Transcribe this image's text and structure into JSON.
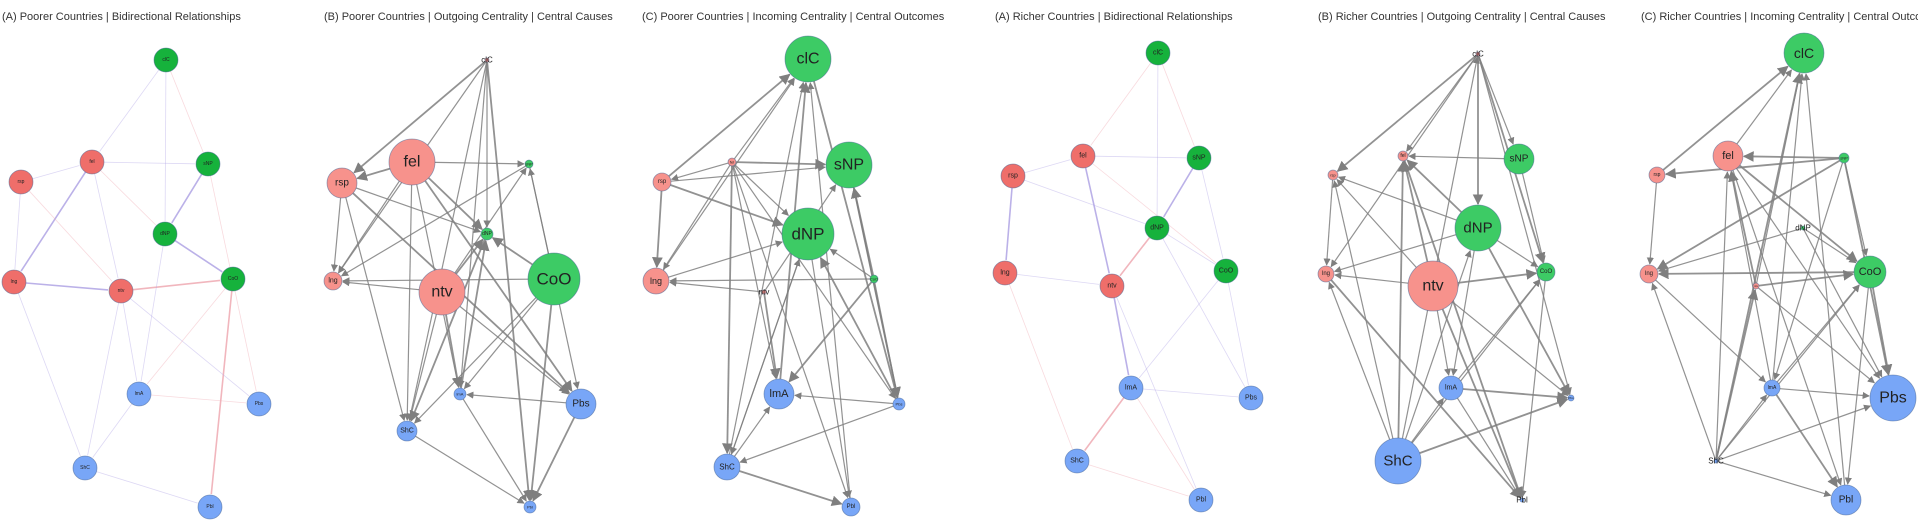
{
  "colors": {
    "red_dark": "#ef6e6a",
    "red_light": "#f7928c",
    "green_dark": "#16b23c",
    "green_light": "#3dcb65",
    "blue": "#78a6f7",
    "edge_gray": "#7f7f7f",
    "edge_lilac": "#b4a8e6",
    "edge_pink": "#f0aeb6"
  },
  "panels": [
    {
      "title": "(A) Poorer Countries | Bidirectional Relationships",
      "style": "undirected",
      "nodes": [
        {
          "id": "clC",
          "label": "clC"
        },
        {
          "id": "fel",
          "label": "fel"
        },
        {
          "id": "sNP",
          "label": "sNP"
        },
        {
          "id": "rsp",
          "label": "rsp"
        },
        {
          "id": "dNP",
          "label": "dNP"
        },
        {
          "id": "lng",
          "label": "lng"
        },
        {
          "id": "ntv",
          "label": "ntv"
        },
        {
          "id": "CoO",
          "label": "CoO"
        },
        {
          "id": "lmA",
          "label": "lmA"
        },
        {
          "id": "Pbs",
          "label": "Pbs"
        },
        {
          "id": "ShC",
          "label": "ShC"
        },
        {
          "id": "Pbl",
          "label": "Pbl"
        }
      ],
      "edges": [
        [
          "fel",
          "lng"
        ],
        [
          "lng",
          "ntv"
        ],
        [
          "ntv",
          "CoO"
        ],
        [
          "sNP",
          "dNP"
        ],
        [
          "dNP",
          "CoO"
        ],
        [
          "CoO",
          "Pbl"
        ],
        [
          "ntv",
          "lmA"
        ],
        [
          "rsp",
          "fel"
        ],
        [
          "rsp",
          "ntv"
        ],
        [
          "fel",
          "ntv"
        ],
        [
          "clC",
          "fel"
        ],
        [
          "clC",
          "sNP"
        ],
        [
          "clC",
          "dNP"
        ],
        [
          "fel",
          "sNP"
        ],
        [
          "fel",
          "dNP"
        ],
        [
          "rsp",
          "lng"
        ],
        [
          "lmA",
          "ShC"
        ],
        [
          "lmA",
          "Pbs"
        ],
        [
          "ShC",
          "Pbl"
        ],
        [
          "dNP",
          "lmA"
        ],
        [
          "sNP",
          "Pbs"
        ],
        [
          "ntv",
          "Pbs"
        ],
        [
          "lng",
          "ShC"
        ],
        [
          "CoO",
          "lmA"
        ],
        [
          "ntv",
          "ShC"
        ]
      ]
    },
    {
      "title": "(B) Poorer Countries | Outgoing Centrality | Central Causes",
      "style": "directed",
      "nodes": [
        {
          "id": "clC",
          "label": "clC"
        },
        {
          "id": "fel",
          "label": "fel"
        },
        {
          "id": "rsp",
          "label": "rsp"
        },
        {
          "id": "sNP",
          "label": "sNP"
        },
        {
          "id": "dNP",
          "label": "dNP"
        },
        {
          "id": "lng",
          "label": "lng"
        },
        {
          "id": "ntv",
          "label": "ntv"
        },
        {
          "id": "CoO",
          "label": "CoO"
        },
        {
          "id": "lmA",
          "label": "lmA"
        },
        {
          "id": "Pbs",
          "label": "Pbs"
        },
        {
          "id": "ShC",
          "label": "ShC"
        },
        {
          "id": "Pbl",
          "label": "Pbl"
        }
      ],
      "edges": [
        [
          "clC",
          "rsp"
        ],
        [
          "clC",
          "lng"
        ],
        [
          "clC",
          "lmA"
        ],
        [
          "clC",
          "Pbl"
        ],
        [
          "clC",
          "ShC"
        ],
        [
          "clC",
          "dNP"
        ],
        [
          "fel",
          "rsp"
        ],
        [
          "fel",
          "lng"
        ],
        [
          "fel",
          "sNP"
        ],
        [
          "fel",
          "dNP"
        ],
        [
          "fel",
          "lmA"
        ],
        [
          "fel",
          "ShC"
        ],
        [
          "fel",
          "Pbs"
        ],
        [
          "rsp",
          "lng"
        ],
        [
          "rsp",
          "ShC"
        ],
        [
          "rsp",
          "Pbs"
        ],
        [
          "rsp",
          "dNP"
        ],
        [
          "ntv",
          "lng"
        ],
        [
          "ntv",
          "dNP"
        ],
        [
          "ntv",
          "sNP"
        ],
        [
          "ntv",
          "ShC"
        ],
        [
          "ntv",
          "lmA"
        ],
        [
          "ntv",
          "Pbs"
        ],
        [
          "CoO",
          "sNP"
        ],
        [
          "CoO",
          "dNP"
        ],
        [
          "CoO",
          "lmA"
        ],
        [
          "CoO",
          "ShC"
        ],
        [
          "CoO",
          "Pbl"
        ],
        [
          "CoO",
          "lng"
        ],
        [
          "Pbs",
          "lmA"
        ],
        [
          "Pbs",
          "Pbl"
        ],
        [
          "ShC",
          "Pbl"
        ],
        [
          "lmA",
          "Pbl"
        ],
        [
          "dNP",
          "ShC"
        ],
        [
          "sNP",
          "Pbs"
        ],
        [
          "sNP",
          "lng"
        ],
        [
          "lmA",
          "dNP"
        ]
      ]
    },
    {
      "title": "(C) Poorer Countries | Incoming Centrality | Central Outcomes",
      "style": "directed",
      "nodes": [
        {
          "id": "clC",
          "label": "clC"
        },
        {
          "id": "fel",
          "label": "fel"
        },
        {
          "id": "rsp",
          "label": "rsp"
        },
        {
          "id": "sNP",
          "label": "sNP"
        },
        {
          "id": "dNP",
          "label": "dNP"
        },
        {
          "id": "lng",
          "label": "lng"
        },
        {
          "id": "ntv",
          "label": "ntv"
        },
        {
          "id": "CoO",
          "label": "CoO"
        },
        {
          "id": "lmA",
          "label": "lmA"
        },
        {
          "id": "Pbs",
          "label": "Pbs"
        },
        {
          "id": "ShC",
          "label": "ShC"
        },
        {
          "id": "Pbl",
          "label": "Pbl"
        }
      ],
      "edges": [
        [
          "rsp",
          "clC"
        ],
        [
          "fel",
          "clC"
        ],
        [
          "lng",
          "clC"
        ],
        [
          "lmA",
          "clC"
        ],
        [
          "Pbl",
          "clC"
        ],
        [
          "ShC",
          "clC"
        ],
        [
          "fel",
          "sNP"
        ],
        [
          "rsp",
          "sNP"
        ],
        [
          "ntv",
          "sNP"
        ],
        [
          "CoO",
          "sNP"
        ],
        [
          "Pbs",
          "sNP"
        ],
        [
          "fel",
          "dNP"
        ],
        [
          "rsp",
          "dNP"
        ],
        [
          "lng",
          "dNP"
        ],
        [
          "ShC",
          "dNP"
        ],
        [
          "Pbs",
          "dNP"
        ],
        [
          "CoO",
          "dNP"
        ],
        [
          "fel",
          "lmA"
        ],
        [
          "CoO",
          "lmA"
        ],
        [
          "ShC",
          "lmA"
        ],
        [
          "Pbs",
          "lmA"
        ],
        [
          "ntv",
          "lmA"
        ],
        [
          "fel",
          "rsp"
        ],
        [
          "fel",
          "lng"
        ],
        [
          "rsp",
          "lng"
        ],
        [
          "ntv",
          "lng"
        ],
        [
          "CoO",
          "lng"
        ],
        [
          "fel",
          "ShC"
        ],
        [
          "Pbs",
          "ShC"
        ],
        [
          "dNP",
          "ShC"
        ],
        [
          "ShC",
          "Pbl"
        ],
        [
          "dNP",
          "Pbl"
        ],
        [
          "fel",
          "Pbl"
        ],
        [
          "sNP",
          "Pbs"
        ],
        [
          "CoO",
          "Pbs"
        ],
        [
          "fel",
          "Pbs"
        ],
        [
          "clC",
          "Pbs"
        ]
      ]
    },
    {
      "title": "(A) Richer Countries | Bidirectional Relationships",
      "style": "undirected",
      "nodes": [
        {
          "id": "clC",
          "label": "clC"
        },
        {
          "id": "fel",
          "label": "fel"
        },
        {
          "id": "sNP",
          "label": "sNP"
        },
        {
          "id": "rsp",
          "label": "rsp"
        },
        {
          "id": "dNP",
          "label": "dNP"
        },
        {
          "id": "lng",
          "label": "lng"
        },
        {
          "id": "ntv",
          "label": "ntv"
        },
        {
          "id": "CoO",
          "label": "CoO"
        },
        {
          "id": "lmA",
          "label": "lmA"
        },
        {
          "id": "Pbs",
          "label": "Pbs"
        },
        {
          "id": "ShC",
          "label": "ShC"
        },
        {
          "id": "Pbl",
          "label": "Pbl"
        }
      ],
      "edges": [
        [
          "fel",
          "ntv"
        ],
        [
          "ntv",
          "lmA"
        ],
        [
          "lmA",
          "ShC"
        ],
        [
          "rsp",
          "lng"
        ],
        [
          "sNP",
          "dNP"
        ],
        [
          "dNP",
          "ntv"
        ],
        [
          "dNP",
          "CoO"
        ],
        [
          "rsp",
          "dNP"
        ],
        [
          "clC",
          "sNP"
        ],
        [
          "clC",
          "dNP"
        ],
        [
          "fel",
          "sNP"
        ],
        [
          "fel",
          "CoO"
        ],
        [
          "lng",
          "ntv"
        ],
        [
          "CoO",
          "Pbs"
        ],
        [
          "lmA",
          "Pbl"
        ],
        [
          "lmA",
          "Pbs"
        ],
        [
          "rsp",
          "fel"
        ],
        [
          "lng",
          "ShC"
        ],
        [
          "CoO",
          "lmA"
        ],
        [
          "ntv",
          "Pbl"
        ],
        [
          "clC",
          "fel"
        ],
        [
          "sNP",
          "CoO"
        ],
        [
          "dNP",
          "Pbs"
        ],
        [
          "ShC",
          "Pbl"
        ]
      ]
    },
    {
      "title": "(B) Richer Countries | Outgoing Centrality | Central Causes",
      "style": "directed",
      "nodes": [
        {
          "id": "clC",
          "label": "clC"
        },
        {
          "id": "fel",
          "label": "fel"
        },
        {
          "id": "rsp",
          "label": "rsp"
        },
        {
          "id": "sNP",
          "label": "sNP"
        },
        {
          "id": "dNP",
          "label": "dNP"
        },
        {
          "id": "lng",
          "label": "lng"
        },
        {
          "id": "ntv",
          "label": "ntv"
        },
        {
          "id": "CoO",
          "label": "CoO"
        },
        {
          "id": "lmA",
          "label": "lmA"
        },
        {
          "id": "Pbs",
          "label": "Pbs"
        },
        {
          "id": "ShC",
          "label": "ShC"
        },
        {
          "id": "Pbl",
          "label": "Pbl"
        }
      ],
      "edges": [
        [
          "clC",
          "rsp"
        ],
        [
          "clC",
          "fel"
        ],
        [
          "clC",
          "sNP"
        ],
        [
          "clC",
          "dNP"
        ],
        [
          "clC",
          "lng"
        ],
        [
          "clC",
          "Pbs"
        ],
        [
          "clC",
          "CoO"
        ],
        [
          "ShC",
          "clC"
        ],
        [
          "ShC",
          "lmA"
        ],
        [
          "ShC",
          "fel"
        ],
        [
          "ShC",
          "dNP"
        ],
        [
          "ShC",
          "CoO"
        ],
        [
          "ShC",
          "Pbs"
        ],
        [
          "ShC",
          "lng"
        ],
        [
          "ShC",
          "rsp"
        ],
        [
          "ntv",
          "fel"
        ],
        [
          "ntv",
          "rsp"
        ],
        [
          "ntv",
          "lng"
        ],
        [
          "ntv",
          "CoO"
        ],
        [
          "ntv",
          "lmA"
        ],
        [
          "ntv",
          "Pbs"
        ],
        [
          "ntv",
          "Pbl"
        ],
        [
          "dNP",
          "rsp"
        ],
        [
          "dNP",
          "lng"
        ],
        [
          "dNP",
          "fel"
        ],
        [
          "dNP",
          "CoO"
        ],
        [
          "dNP",
          "lmA"
        ],
        [
          "dNP",
          "Pbs"
        ],
        [
          "sNP",
          "fel"
        ],
        [
          "sNP",
          "CoO"
        ],
        [
          "lmA",
          "Pbs"
        ],
        [
          "lmA",
          "CoO"
        ],
        [
          "lmA",
          "Pbl"
        ],
        [
          "fel",
          "Pbl"
        ],
        [
          "CoO",
          "Pbl"
        ],
        [
          "rsp",
          "lng"
        ],
        [
          "lng",
          "Pbl"
        ]
      ]
    },
    {
      "title": "(C) Richer Countries | Incoming Centrality | Central Outcomes",
      "style": "directed",
      "nodes": [
        {
          "id": "clC",
          "label": "clC"
        },
        {
          "id": "fel",
          "label": "fel"
        },
        {
          "id": "rsp",
          "label": "rsp"
        },
        {
          "id": "sNP",
          "label": "sNP"
        },
        {
          "id": "dNP",
          "label": "dNP"
        },
        {
          "id": "lng",
          "label": "lng"
        },
        {
          "id": "ntv",
          "label": "ntv"
        },
        {
          "id": "CoO",
          "label": "CoO"
        },
        {
          "id": "lmA",
          "label": "lmA"
        },
        {
          "id": "Pbs",
          "label": "Pbs"
        },
        {
          "id": "ShC",
          "label": "ShC"
        },
        {
          "id": "Pbl",
          "label": "Pbl"
        }
      ],
      "edges": [
        [
          "rsp",
          "clC"
        ],
        [
          "fel",
          "clC"
        ],
        [
          "lmA",
          "clC"
        ],
        [
          "ShC",
          "clC"
        ],
        [
          "ntv",
          "clC"
        ],
        [
          "Pbl",
          "clC"
        ],
        [
          "sNP",
          "fel"
        ],
        [
          "lmA",
          "fel"
        ],
        [
          "ShC",
          "fel"
        ],
        [
          "ntv",
          "fel"
        ],
        [
          "dNP",
          "CoO"
        ],
        [
          "sNP",
          "CoO"
        ],
        [
          "fel",
          "CoO"
        ],
        [
          "ShC",
          "CoO"
        ],
        [
          "lmA",
          "CoO"
        ],
        [
          "ntv",
          "CoO"
        ],
        [
          "ShC",
          "Pbs"
        ],
        [
          "lmA",
          "Pbs"
        ],
        [
          "CoO",
          "Pbs"
        ],
        [
          "fel",
          "Pbs"
        ],
        [
          "ntv",
          "Pbs"
        ],
        [
          "sNP",
          "Pbs"
        ],
        [
          "dNP",
          "Pbs"
        ],
        [
          "ShC",
          "Pbl"
        ],
        [
          "lmA",
          "Pbl"
        ],
        [
          "fel",
          "Pbl"
        ],
        [
          "CoO",
          "Pbl"
        ],
        [
          "sNP",
          "rsp"
        ],
        [
          "dNP",
          "lng"
        ],
        [
          "ShC",
          "lng"
        ],
        [
          "sNP",
          "lng"
        ],
        [
          "ShC",
          "lmA"
        ],
        [
          "sNP",
          "lmA"
        ],
        [
          "ShC",
          "ntv"
        ],
        [
          "lng",
          "lmA"
        ],
        [
          "rsp",
          "lng"
        ],
        [
          "CoO",
          "lng"
        ]
      ]
    }
  ]
}
